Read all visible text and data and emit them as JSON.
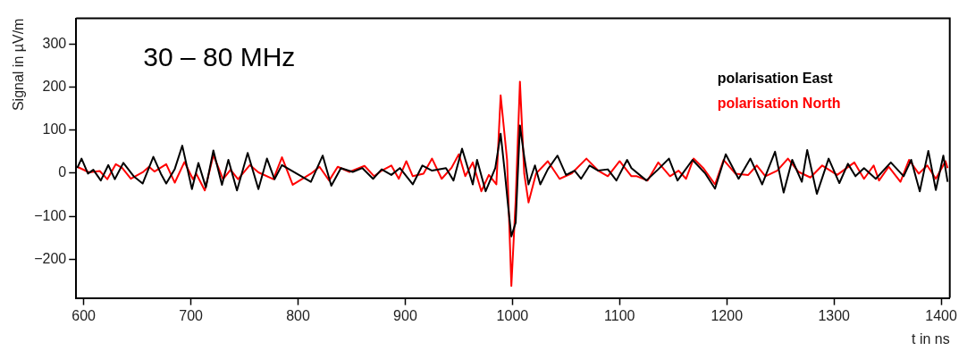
{
  "chart_data": {
    "type": "line",
    "xlabel": "t in ns",
    "ylabel": "Signal in µV/m",
    "annotations": [
      "30 – 80 MHz"
    ],
    "xlim": [
      593,
      1408
    ],
    "ylim": [
      -290,
      360
    ],
    "xticks": [
      600,
      700,
      800,
      900,
      1000,
      1100,
      1200,
      1300,
      1400
    ],
    "yticks": [
      -200,
      -100,
      0,
      100,
      200,
      300
    ],
    "grid": false,
    "legend": "top right",
    "marker": "none",
    "line_style": "solid",
    "series": [
      {
        "name": "polarisation East",
        "color": "#000000",
        "x": [
          594,
          598,
          604,
          609,
          616,
          623,
          629,
          637,
          647,
          655,
          665,
          672,
          677,
          685,
          692,
          701,
          707,
          714,
          721,
          729,
          735,
          743,
          753,
          763,
          771,
          778,
          785,
          812,
          823,
          831,
          840,
          851,
          860,
          870,
          878,
          887,
          895,
          907,
          916,
          925,
          938,
          945,
          953,
          963,
          967,
          975,
          984,
          989,
          993,
          996,
          999,
          1003,
          1007,
          1011,
          1015,
          1021,
          1026,
          1033,
          1042,
          1050,
          1058,
          1064,
          1072,
          1080,
          1089,
          1097,
          1107,
          1111,
          1125,
          1136,
          1146,
          1154,
          1168,
          1180,
          1189,
          1199,
          1211,
          1222,
          1233,
          1245,
          1253,
          1261,
          1270,
          1275,
          1284,
          1295,
          1305,
          1313,
          1320,
          1328,
          1339,
          1353,
          1365,
          1372,
          1380,
          1388,
          1395,
          1402,
          1406
        ],
        "values": [
          12,
          34,
          -1,
          8,
          -17,
          19,
          -14,
          24,
          -8,
          -24,
          38,
          -1,
          -24,
          10,
          64,
          -37,
          24,
          -33,
          53,
          -27,
          31,
          -40,
          47,
          -37,
          34,
          -14,
          19,
          -20,
          41,
          -29,
          12,
          3,
          12,
          -13,
          9,
          -4,
          12,
          -26,
          18,
          6,
          12,
          -17,
          57,
          -26,
          31,
          -42,
          12,
          92,
          -1,
          -77,
          -147,
          -115,
          111,
          38,
          -26,
          18,
          -26,
          9,
          41,
          -4,
          6,
          -13,
          18,
          6,
          9,
          -17,
          31,
          12,
          -17,
          9,
          34,
          -17,
          31,
          -1,
          -36,
          44,
          -13,
          34,
          -26,
          50,
          -45,
          31,
          -20,
          54,
          -48,
          34,
          -23,
          22,
          -7,
          12,
          -13,
          25,
          -7,
          31,
          -42,
          52,
          -39,
          41,
          -20
        ]
      },
      {
        "name": "polarisation North",
        "color": "#ff0000",
        "x": [
          594,
          605,
          615,
          622,
          630,
          636,
          644,
          655,
          661,
          666,
          677,
          685,
          694,
          702,
          705,
          713,
          721,
          730,
          737,
          744,
          755,
          763,
          777,
          785,
          795,
          812,
          820,
          829,
          837,
          848,
          862,
          871,
          878,
          887,
          894,
          901,
          907,
          917,
          925,
          934,
          943,
          950,
          956,
          963,
          971,
          978,
          985,
          989,
          995,
          999,
          1003,
          1007,
          1011,
          1015,
          1022,
          1033,
          1044,
          1055,
          1069,
          1080,
          1089,
          1100,
          1111,
          1116,
          1126,
          1136,
          1147,
          1155,
          1162,
          1169,
          1178,
          1189,
          1197,
          1208,
          1220,
          1228,
          1236,
          1247,
          1257,
          1267,
          1278,
          1289,
          1303,
          1319,
          1328,
          1337,
          1342,
          1351,
          1362,
          1370,
          1379,
          1387,
          1395,
          1404,
          1406
        ],
        "values": [
          15,
          2,
          5,
          -14,
          21,
          12,
          -13,
          2,
          15,
          4,
          21,
          -22,
          26,
          -14,
          -1,
          -40,
          42,
          -14,
          8,
          -14,
          19,
          2,
          -14,
          37,
          -27,
          -1,
          15,
          -17,
          15,
          3,
          17,
          -7,
          6,
          18,
          -13,
          28,
          -7,
          -1,
          34,
          -13,
          12,
          44,
          -7,
          25,
          -42,
          -4,
          -26,
          181,
          31,
          -262,
          -64,
          213,
          -1,
          -68,
          -1,
          28,
          -13,
          -1,
          34,
          6,
          -7,
          28,
          -7,
          -7,
          -17,
          25,
          -7,
          6,
          -13,
          34,
          12,
          -26,
          31,
          -1,
          -4,
          18,
          -7,
          6,
          34,
          3,
          -10,
          18,
          -4,
          25,
          -13,
          18,
          -17,
          15,
          -20,
          31,
          -1,
          18,
          -13,
          28,
          12
        ]
      }
    ]
  }
}
